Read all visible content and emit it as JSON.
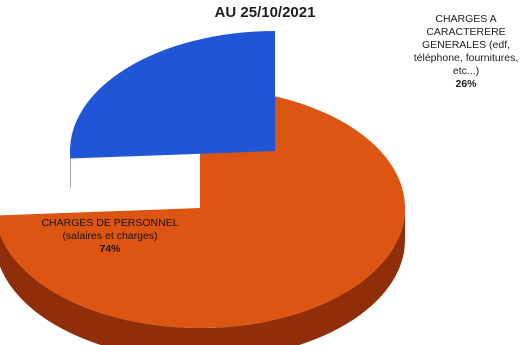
{
  "chart_data": {
    "type": "pie",
    "title": "AU 25/10/2021",
    "slices": [
      {
        "label": "CHARGES DE PERSONNEL (salaires et charges)",
        "value": 74,
        "value_label": "74%",
        "color": "#dc5512",
        "side_color": "#8f2e08"
      },
      {
        "label": "CHARGES A CARACTERERE GENERALES (edf, téléphone, fournitures, etc...)",
        "value": 26,
        "value_label": "26%",
        "color": "#2056d6",
        "side_color": "#0f1c45"
      }
    ],
    "style": "3d",
    "exploded_slice": "CHARGES A CARACTERERE GENERALES (edf, téléphone, fournitures, etc...)",
    "legend": "none"
  }
}
